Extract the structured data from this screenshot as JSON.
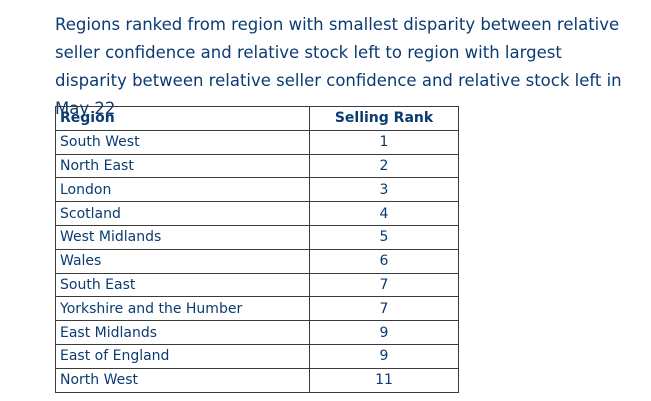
{
  "chart_data": {
    "type": "table",
    "title": "Regions ranked from region with smallest disparity between relative seller confidence and relative stock left to region with largest disparity between relative seller confidence and relative stock left in May 22",
    "columns": [
      "Region",
      "Selling Rank"
    ],
    "rows": [
      [
        "South West",
        "1"
      ],
      [
        "North East",
        "2"
      ],
      [
        "London",
        "3"
      ],
      [
        "Scotland",
        "4"
      ],
      [
        "West Midlands",
        "5"
      ],
      [
        "Wales",
        "6"
      ],
      [
        "South East",
        "7"
      ],
      [
        "Yorkshire and the Humber",
        "7"
      ],
      [
        "East Midlands",
        "9"
      ],
      [
        "East of England",
        "9"
      ],
      [
        "North West",
        "11"
      ]
    ]
  },
  "colors": {
    "text": "#0b3b72",
    "border": "#3b3b3b",
    "background": "#ffffff"
  }
}
